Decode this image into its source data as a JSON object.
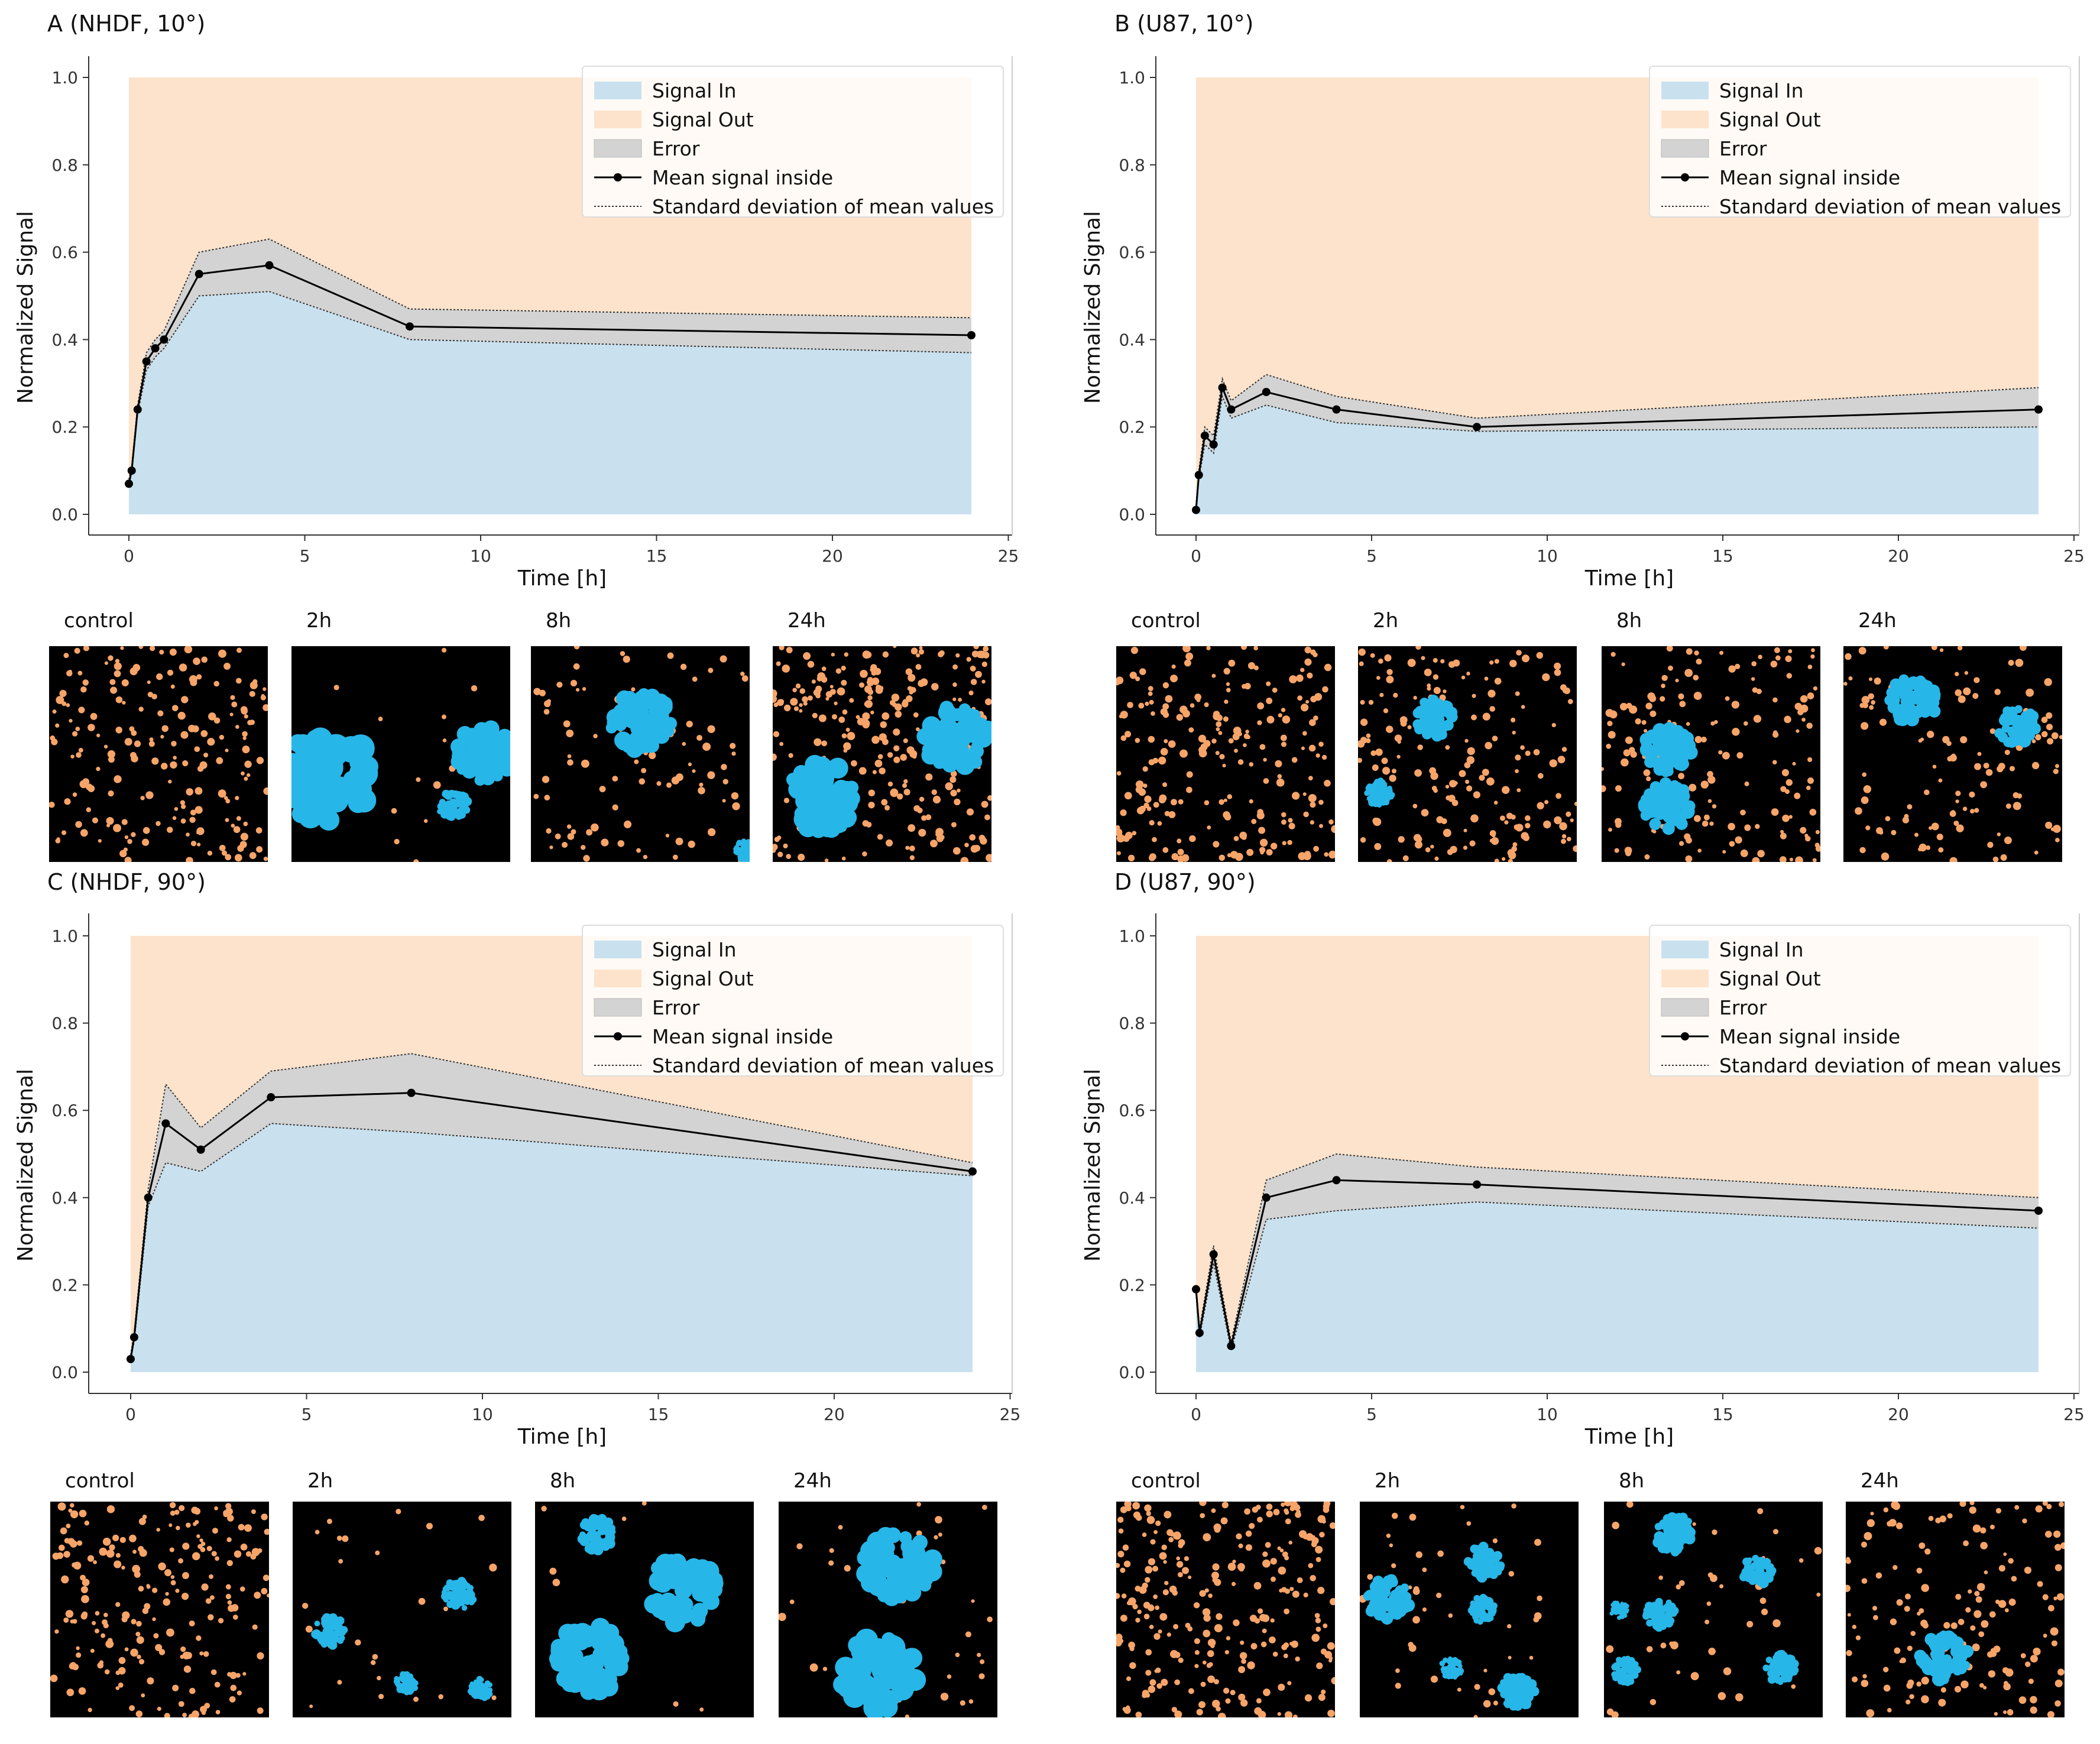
{
  "colors": {
    "signal_in": "#c9e1ef",
    "signal_out": "#fde3cb",
    "error": "#d3d3d3",
    "mean_line": "#000000",
    "cell_out": "#f7a469",
    "cell_in": "#27b6e8"
  },
  "chart_data": [
    {
      "panel": "A",
      "type": "line",
      "title": "A (NHDF, 10°)",
      "xlabel": "Time [h]",
      "ylabel": "Normalized Signal",
      "xlim": [
        -1,
        25
      ],
      "ylim": [
        0,
        1.0
      ],
      "xticks": [
        "0",
        "5",
        "10",
        "15",
        "20",
        "25"
      ],
      "yticks": [
        "0.0",
        "0.2",
        "0.4",
        "0.6",
        "0.8",
        "1.0"
      ],
      "legend": [
        "Signal In",
        "Signal Out",
        "Error",
        "Mean signal inside",
        "Standard deviation of mean values"
      ],
      "legend_position": "top-right",
      "x": [
        0,
        0.08,
        0.25,
        0.5,
        0.75,
        1,
        2,
        4,
        8,
        24
      ],
      "series": [
        {
          "name": "Mean signal inside",
          "values": [
            0.07,
            0.1,
            0.24,
            0.35,
            0.38,
            0.4,
            0.55,
            0.57,
            0.43,
            0.41
          ]
        },
        {
          "name": "Upper std",
          "values": [
            0.08,
            0.11,
            0.25,
            0.37,
            0.4,
            0.42,
            0.6,
            0.63,
            0.47,
            0.45
          ]
        },
        {
          "name": "Lower std",
          "values": [
            0.07,
            0.1,
            0.23,
            0.33,
            0.36,
            0.38,
            0.5,
            0.51,
            0.4,
            0.37
          ]
        }
      ],
      "thumbnails": [
        "control",
        "2h",
        "8h",
        "24h"
      ]
    },
    {
      "panel": "B",
      "type": "line",
      "title": "B (U87, 10°)",
      "xlabel": "Time [h]",
      "ylabel": "Normalized Signal",
      "xlim": [
        -1,
        25
      ],
      "ylim": [
        0,
        1.0
      ],
      "xticks": [
        "0",
        "5",
        "10",
        "15",
        "20",
        "25"
      ],
      "yticks": [
        "0.0",
        "0.2",
        "0.4",
        "0.6",
        "0.8",
        "1.0"
      ],
      "legend": [
        "Signal In",
        "Signal Out",
        "Error",
        "Mean signal inside",
        "Standard deviation of mean values"
      ],
      "legend_position": "top-right",
      "x": [
        0,
        0.08,
        0.25,
        0.5,
        0.75,
        1,
        2,
        4,
        8,
        24
      ],
      "series": [
        {
          "name": "Mean signal inside",
          "values": [
            0.01,
            0.09,
            0.18,
            0.16,
            0.29,
            0.24,
            0.28,
            0.24,
            0.2,
            0.24
          ]
        },
        {
          "name": "Upper std",
          "values": [
            0.02,
            0.1,
            0.2,
            0.18,
            0.31,
            0.26,
            0.32,
            0.27,
            0.22,
            0.29
          ]
        },
        {
          "name": "Lower std",
          "values": [
            0.01,
            0.08,
            0.16,
            0.14,
            0.27,
            0.22,
            0.25,
            0.21,
            0.19,
            0.2
          ]
        }
      ],
      "thumbnails": [
        "control",
        "2h",
        "8h",
        "24h"
      ]
    },
    {
      "panel": "C",
      "type": "line",
      "title": "C (NHDF, 90°)",
      "xlabel": "Time [h]",
      "ylabel": "Normalized Signal",
      "xlim": [
        -1,
        25
      ],
      "ylim": [
        0,
        1.0
      ],
      "xticks": [
        "0",
        "5",
        "10",
        "15",
        "20",
        "25"
      ],
      "yticks": [
        "0.0",
        "0.2",
        "0.4",
        "0.6",
        "0.8",
        "1.0"
      ],
      "legend": [
        "Signal In",
        "Signal Out",
        "Error",
        "Mean signal inside",
        "Standard deviation of mean values"
      ],
      "legend_position": "top-right",
      "x": [
        0,
        0.1,
        0.5,
        1,
        2,
        4,
        8,
        24
      ],
      "series": [
        {
          "name": "Mean signal inside",
          "values": [
            0.03,
            0.08,
            0.4,
            0.57,
            0.51,
            0.63,
            0.64,
            0.46
          ]
        },
        {
          "name": "Upper std",
          "values": [
            0.04,
            0.09,
            0.42,
            0.66,
            0.56,
            0.69,
            0.73,
            0.48
          ]
        },
        {
          "name": "Lower std",
          "values": [
            0.03,
            0.07,
            0.38,
            0.48,
            0.46,
            0.57,
            0.55,
            0.45
          ]
        }
      ],
      "thumbnails": [
        "control",
        "2h",
        "8h",
        "24h"
      ]
    },
    {
      "panel": "D",
      "type": "line",
      "title": "D (U87, 90°)",
      "xlabel": "Time [h]",
      "ylabel": "Normalized Signal",
      "xlim": [
        -1,
        25
      ],
      "ylim": [
        0,
        1.0
      ],
      "xticks": [
        "0",
        "5",
        "10",
        "15",
        "20",
        "25"
      ],
      "yticks": [
        "0.0",
        "0.2",
        "0.4",
        "0.6",
        "0.8",
        "1.0"
      ],
      "legend": [
        "Signal In",
        "Signal Out",
        "Error",
        "Mean signal inside",
        "Standard deviation of mean values"
      ],
      "legend_position": "top-right",
      "x": [
        0,
        0.1,
        0.5,
        1,
        2,
        4,
        8,
        24
      ],
      "series": [
        {
          "name": "Mean signal inside",
          "values": [
            0.19,
            0.09,
            0.27,
            0.06,
            0.4,
            0.44,
            0.43,
            0.37
          ]
        },
        {
          "name": "Upper std",
          "values": [
            0.2,
            0.1,
            0.29,
            0.07,
            0.44,
            0.5,
            0.47,
            0.4
          ]
        },
        {
          "name": "Lower std",
          "values": [
            0.18,
            0.08,
            0.25,
            0.05,
            0.35,
            0.37,
            0.39,
            0.33
          ]
        }
      ],
      "thumbnails": [
        "control",
        "2h",
        "8h",
        "24h"
      ]
    }
  ]
}
